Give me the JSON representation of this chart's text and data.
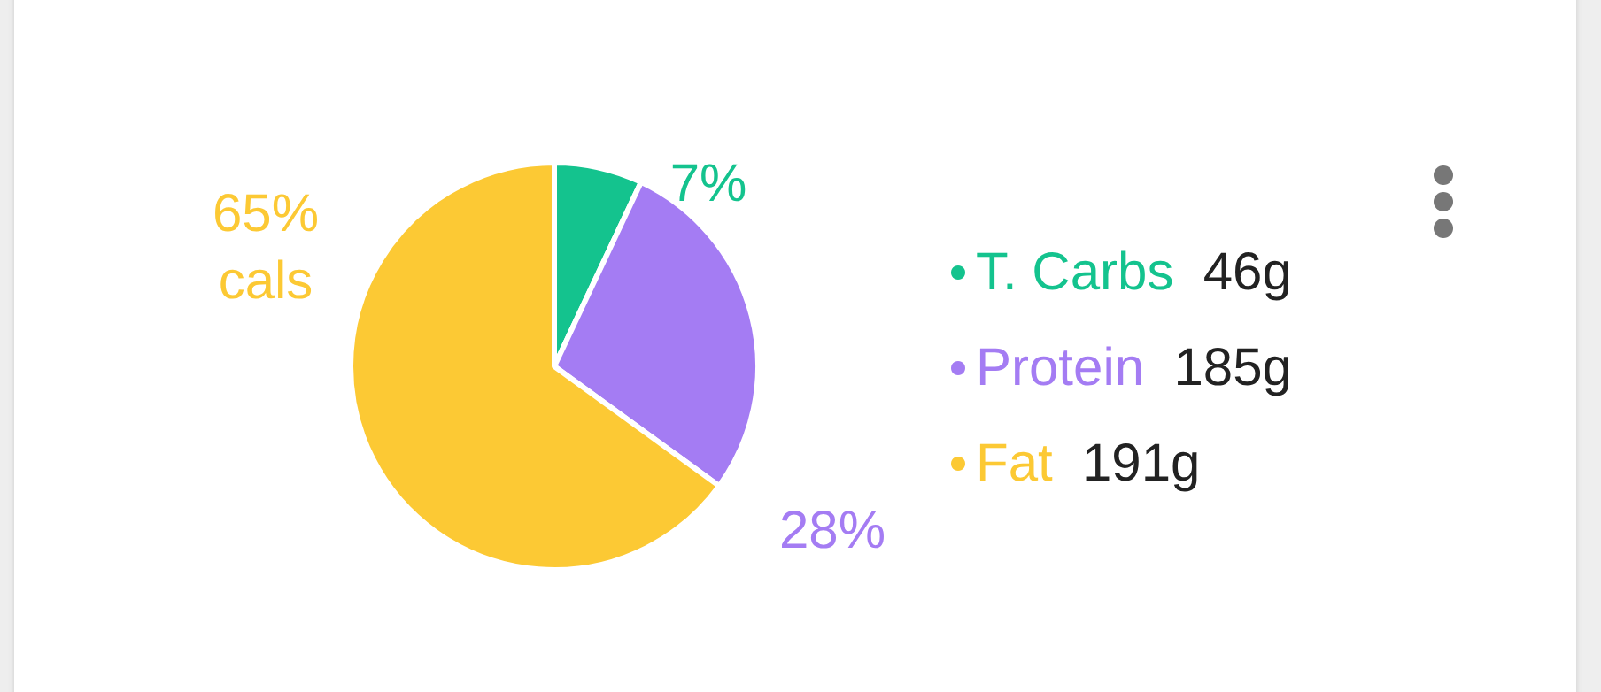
{
  "chart_data": {
    "type": "pie",
    "categories": [
      "T. Carbs",
      "Protein",
      "Fat"
    ],
    "values": [
      7,
      28,
      65
    ],
    "colors": [
      "#14c38e",
      "#a47cf3",
      "#fcc934"
    ],
    "value_labels": [
      "7%",
      "28%",
      "65%\ncals"
    ],
    "annotations": [
      "46g",
      "185g",
      "191g"
    ],
    "legend": "right"
  }
}
